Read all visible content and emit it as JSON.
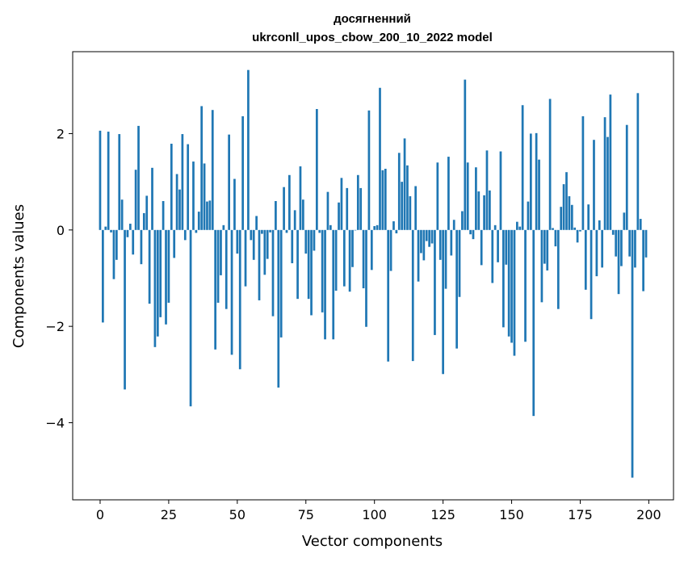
{
  "chart_data": {
    "type": "bar",
    "title_line1": "досягненний",
    "title_line2": "ukrconll_upos_cbow_200_10_2022 model",
    "xlabel": "Vector components",
    "ylabel": "Components values",
    "xlim": [
      -10,
      209
    ],
    "ylim": [
      -5.6,
      3.7
    ],
    "xticks": [
      0,
      25,
      50,
      75,
      100,
      125,
      150,
      175,
      200
    ],
    "xtick_labels": [
      "0",
      "25",
      "50",
      "75",
      "100",
      "125",
      "150",
      "175",
      "200"
    ],
    "yticks": [
      -4,
      -2,
      0,
      2
    ],
    "ytick_labels": [
      "−4",
      "−2",
      "0",
      "2"
    ],
    "bar_color": "#1f77b4",
    "grid": false,
    "x": [
      0,
      1,
      2,
      3,
      4,
      5,
      6,
      7,
      8,
      9,
      10,
      11,
      12,
      13,
      14,
      15,
      16,
      17,
      18,
      19,
      20,
      21,
      22,
      23,
      24,
      25,
      26,
      27,
      28,
      29,
      30,
      31,
      32,
      33,
      34,
      35,
      36,
      37,
      38,
      39,
      40,
      41,
      42,
      43,
      44,
      45,
      46,
      47,
      48,
      49,
      50,
      51,
      52,
      53,
      54,
      55,
      56,
      57,
      58,
      59,
      60,
      61,
      62,
      63,
      64,
      65,
      66,
      67,
      68,
      69,
      70,
      71,
      72,
      73,
      74,
      75,
      76,
      77,
      78,
      79,
      80,
      81,
      82,
      83,
      84,
      85,
      86,
      87,
      88,
      89,
      90,
      91,
      92,
      93,
      94,
      95,
      96,
      97,
      98,
      99,
      100,
      101,
      102,
      103,
      104,
      105,
      106,
      107,
      108,
      109,
      110,
      111,
      112,
      113,
      114,
      115,
      116,
      117,
      118,
      119,
      120,
      121,
      122,
      123,
      124,
      125,
      126,
      127,
      128,
      129,
      130,
      131,
      132,
      133,
      134,
      135,
      136,
      137,
      138,
      139,
      140,
      141,
      142,
      143,
      144,
      145,
      146,
      147,
      148,
      149,
      150,
      151,
      152,
      153,
      154,
      155,
      156,
      157,
      158,
      159,
      160,
      161,
      162,
      163,
      164,
      165,
      166,
      167,
      168,
      169,
      170,
      171,
      172,
      173,
      174,
      175,
      176,
      177,
      178,
      179,
      180,
      181,
      182,
      183,
      184,
      185,
      186,
      187,
      188,
      189,
      190,
      191,
      192,
      193,
      194,
      195,
      196,
      197,
      198,
      199
    ],
    "values": [
      2.06,
      -1.92,
      0.07,
      2.04,
      -0.05,
      -1.02,
      -0.62,
      1.99,
      0.63,
      -3.31,
      -0.15,
      0.13,
      -0.51,
      1.25,
      2.16,
      -0.71,
      0.35,
      0.71,
      -1.53,
      1.29,
      -2.43,
      -2.21,
      -1.81,
      0.6,
      -1.96,
      -1.51,
      1.79,
      -0.58,
      1.16,
      0.84,
      1.99,
      -0.21,
      1.78,
      -3.66,
      1.42,
      -0.06,
      0.38,
      2.57,
      1.38,
      0.59,
      0.61,
      2.49,
      -2.48,
      -1.51,
      -0.94,
      0.1,
      -1.64,
      1.98,
      -2.59,
      1.06,
      -0.49,
      -2.89,
      2.36,
      -1.17,
      3.32,
      -0.21,
      -0.62,
      0.29,
      -1.46,
      -0.08,
      -0.93,
      -0.6,
      -0.05,
      -1.79,
      0.6,
      -3.27,
      -2.23,
      0.89,
      -0.06,
      1.14,
      -0.69,
      0.41,
      -1.43,
      1.32,
      0.63,
      -0.49,
      -1.43,
      -1.77,
      -0.43,
      2.51,
      -0.06,
      -1.71,
      -2.27,
      0.79,
      0.1,
      -2.27,
      -1.26,
      0.57,
      1.08,
      -1.17,
      0.87,
      -1.28,
      -0.77,
      -0.01,
      1.14,
      0.87,
      -1.21,
      -2.01,
      2.48,
      -0.83,
      0.08,
      0.1,
      2.95,
      1.24,
      1.27,
      -2.73,
      -0.85,
      0.18,
      -0.07,
      1.6,
      1.0,
      1.9,
      1.34,
      0.7,
      -2.72,
      0.91,
      -1.07,
      -0.48,
      -0.63,
      -0.23,
      -0.35,
      -0.28,
      -2.18,
      1.4,
      -0.62,
      -2.99,
      -1.22,
      1.52,
      -0.53,
      0.21,
      -2.46,
      -1.39,
      0.39,
      3.12,
      1.4,
      -0.09,
      -0.19,
      1.3,
      0.8,
      -0.73,
      0.72,
      1.65,
      0.82,
      -1.1,
      0.1,
      -0.67,
      1.63,
      -2.02,
      -0.72,
      -2.21,
      -2.34,
      -2.61,
      0.17,
      0.07,
      2.59,
      -2.32,
      0.59,
      2.0,
      -3.86,
      2.01,
      1.46,
      -1.5,
      -0.7,
      -0.84,
      2.72,
      0.04,
      -0.34,
      -1.64,
      0.48,
      0.95,
      1.2,
      0.7,
      0.52,
      0.05,
      -0.26,
      -0.03,
      2.36,
      -1.24,
      0.53,
      -1.85,
      1.87,
      -0.96,
      0.2,
      -0.78,
      2.34,
      1.93,
      2.81,
      -0.1,
      -0.55,
      -1.33,
      -0.75,
      0.36,
      2.18,
      -0.55,
      -5.14,
      -0.78,
      2.84,
      0.23,
      -1.27,
      -0.57
    ]
  }
}
